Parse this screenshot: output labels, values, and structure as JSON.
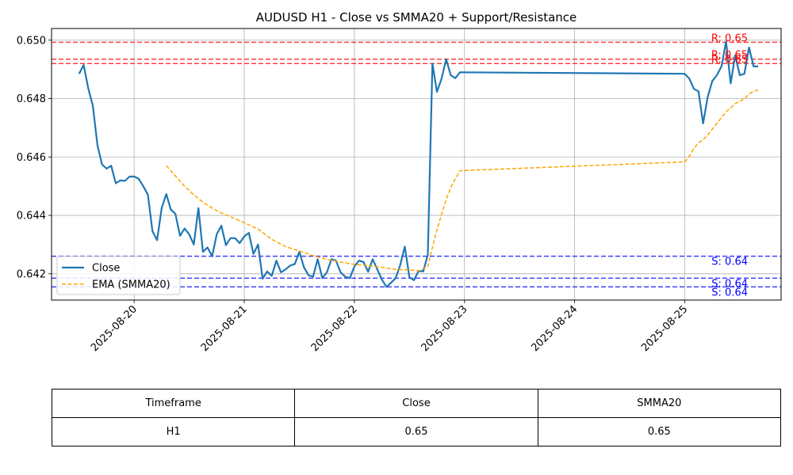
{
  "chart_data": {
    "type": "line",
    "title": "AUDUSD H1 - Close vs SMMA20 + Support/Resistance",
    "xlabel": "",
    "ylabel": "",
    "xlim": [
      "2025-08-19 06:00",
      "2025-08-25 21:00"
    ],
    "ylim": [
      0.6411,
      0.6504
    ],
    "x_ticks": [
      "2025-08-20",
      "2025-08-21",
      "2025-08-22",
      "2025-08-23",
      "2025-08-24",
      "2025-08-25"
    ],
    "y_ticks": [
      "0.642",
      "0.644",
      "0.646",
      "0.648",
      "0.650"
    ],
    "grid": true,
    "legend_position": "lower-left",
    "series": [
      {
        "name": "Close",
        "color": "#1f77b4",
        "style": "solid",
        "points": [
          [
            "2025-08-19 12:00",
            0.64885
          ],
          [
            "2025-08-19 13:00",
            0.64915
          ],
          [
            "2025-08-19 14:00",
            0.64835
          ],
          [
            "2025-08-19 15:00",
            0.64775
          ],
          [
            "2025-08-19 16:00",
            0.6464
          ],
          [
            "2025-08-19 17:00",
            0.64575
          ],
          [
            "2025-08-19 18:00",
            0.6456
          ],
          [
            "2025-08-19 19:00",
            0.6457
          ],
          [
            "2025-08-19 20:00",
            0.6451
          ],
          [
            "2025-08-19 21:00",
            0.6452
          ],
          [
            "2025-08-19 22:00",
            0.64518
          ],
          [
            "2025-08-19 23:00",
            0.64533
          ],
          [
            "2025-08-20 00:00",
            0.64533
          ],
          [
            "2025-08-20 01:00",
            0.64525
          ],
          [
            "2025-08-20 02:00",
            0.645
          ],
          [
            "2025-08-20 03:00",
            0.6447
          ],
          [
            "2025-08-20 04:00",
            0.64345
          ],
          [
            "2025-08-20 05:00",
            0.64315
          ],
          [
            "2025-08-20 06:00",
            0.64425
          ],
          [
            "2025-08-20 07:00",
            0.64473
          ],
          [
            "2025-08-20 08:00",
            0.6442
          ],
          [
            "2025-08-20 09:00",
            0.64405
          ],
          [
            "2025-08-20 10:00",
            0.6433
          ],
          [
            "2025-08-20 11:00",
            0.64355
          ],
          [
            "2025-08-20 12:00",
            0.64335
          ],
          [
            "2025-08-20 13:00",
            0.643
          ],
          [
            "2025-08-20 14:00",
            0.64425
          ],
          [
            "2025-08-20 15:00",
            0.64275
          ],
          [
            "2025-08-20 16:00",
            0.6429
          ],
          [
            "2025-08-20 17:00",
            0.6426
          ],
          [
            "2025-08-20 18:00",
            0.64335
          ],
          [
            "2025-08-20 19:00",
            0.64365
          ],
          [
            "2025-08-20 20:00",
            0.64298
          ],
          [
            "2025-08-20 21:00",
            0.64322
          ],
          [
            "2025-08-20 22:00",
            0.64322
          ],
          [
            "2025-08-20 23:00",
            0.64305
          ],
          [
            "2025-08-21 00:00",
            0.64328
          ],
          [
            "2025-08-21 01:00",
            0.6434
          ],
          [
            "2025-08-21 02:00",
            0.64268
          ],
          [
            "2025-08-21 03:00",
            0.643
          ],
          [
            "2025-08-21 04:00",
            0.64183
          ],
          [
            "2025-08-21 05:00",
            0.64208
          ],
          [
            "2025-08-21 06:00",
            0.64193
          ],
          [
            "2025-08-21 07:00",
            0.64245
          ],
          [
            "2025-08-21 08:00",
            0.64205
          ],
          [
            "2025-08-21 09:00",
            0.64215
          ],
          [
            "2025-08-21 10:00",
            0.64228
          ],
          [
            "2025-08-21 11:00",
            0.64233
          ],
          [
            "2025-08-21 12:00",
            0.64275
          ],
          [
            "2025-08-21 13:00",
            0.64223
          ],
          [
            "2025-08-21 14:00",
            0.64195
          ],
          [
            "2025-08-21 15:00",
            0.6419
          ],
          [
            "2025-08-21 16:00",
            0.6425
          ],
          [
            "2025-08-21 17:00",
            0.64185
          ],
          [
            "2025-08-21 18:00",
            0.64205
          ],
          [
            "2025-08-21 19:00",
            0.6425
          ],
          [
            "2025-08-21 20:00",
            0.64245
          ],
          [
            "2025-08-21 21:00",
            0.64205
          ],
          [
            "2025-08-21 22:00",
            0.6419
          ],
          [
            "2025-08-21 23:00",
            0.64185
          ],
          [
            "2025-08-22 00:00",
            0.64225
          ],
          [
            "2025-08-22 01:00",
            0.64245
          ],
          [
            "2025-08-22 02:00",
            0.6424
          ],
          [
            "2025-08-22 03:00",
            0.64207
          ],
          [
            "2025-08-22 04:00",
            0.6425
          ],
          [
            "2025-08-22 05:00",
            0.64215
          ],
          [
            "2025-08-22 06:00",
            0.6418
          ],
          [
            "2025-08-22 07:00",
            0.64155
          ],
          [
            "2025-08-22 08:00",
            0.6417
          ],
          [
            "2025-08-22 09:00",
            0.64185
          ],
          [
            "2025-08-22 10:00",
            0.6423
          ],
          [
            "2025-08-22 11:00",
            0.64293
          ],
          [
            "2025-08-22 12:00",
            0.64188
          ],
          [
            "2025-08-22 13:00",
            0.64178
          ],
          [
            "2025-08-22 14:00",
            0.6421
          ],
          [
            "2025-08-22 15:00",
            0.64208
          ],
          [
            "2025-08-22 16:00",
            0.64265
          ],
          [
            "2025-08-22 17:00",
            0.6492
          ],
          [
            "2025-08-22 18:00",
            0.64823
          ],
          [
            "2025-08-22 19:00",
            0.64868
          ],
          [
            "2025-08-22 20:00",
            0.64935
          ],
          [
            "2025-08-22 21:00",
            0.6488
          ],
          [
            "2025-08-22 22:00",
            0.6487
          ],
          [
            "2025-08-22 23:00",
            0.6489
          ],
          [
            "2025-08-25 00:00",
            0.64885
          ],
          [
            "2025-08-25 01:00",
            0.64868
          ],
          [
            "2025-08-25 02:00",
            0.64833
          ],
          [
            "2025-08-25 03:00",
            0.64825
          ],
          [
            "2025-08-25 04:00",
            0.64715
          ],
          [
            "2025-08-25 05:00",
            0.64805
          ],
          [
            "2025-08-25 06:00",
            0.6486
          ],
          [
            "2025-08-25 07:00",
            0.6488
          ],
          [
            "2025-08-25 08:00",
            0.6491
          ],
          [
            "2025-08-25 09:00",
            0.64995
          ],
          [
            "2025-08-25 10:00",
            0.64852
          ],
          [
            "2025-08-25 11:00",
            0.64948
          ],
          [
            "2025-08-25 12:00",
            0.6488
          ],
          [
            "2025-08-25 13:00",
            0.64885
          ],
          [
            "2025-08-25 14:00",
            0.64975
          ],
          [
            "2025-08-25 15:00",
            0.6491
          ],
          [
            "2025-08-25 16:00",
            0.6491
          ]
        ]
      },
      {
        "name": "EMA (SMMA20)",
        "color": "#ffa500",
        "style": "dashed",
        "points": [
          [
            "2025-08-20 07:00",
            0.6457
          ],
          [
            "2025-08-20 09:00",
            0.64535
          ],
          [
            "2025-08-20 11:00",
            0.645
          ],
          [
            "2025-08-20 13:00",
            0.6447
          ],
          [
            "2025-08-20 15:00",
            0.64445
          ],
          [
            "2025-08-20 17:00",
            0.64425
          ],
          [
            "2025-08-20 19:00",
            0.64408
          ],
          [
            "2025-08-20 21:00",
            0.64395
          ],
          [
            "2025-08-21 00:00",
            0.64375
          ],
          [
            "2025-08-21 03:00",
            0.64353
          ],
          [
            "2025-08-21 06:00",
            0.64318
          ],
          [
            "2025-08-21 09:00",
            0.64293
          ],
          [
            "2025-08-21 12:00",
            0.64278
          ],
          [
            "2025-08-21 15:00",
            0.64262
          ],
          [
            "2025-08-21 18:00",
            0.6425
          ],
          [
            "2025-08-21 21:00",
            0.6424
          ],
          [
            "2025-08-22 00:00",
            0.64232
          ],
          [
            "2025-08-22 03:00",
            0.64228
          ],
          [
            "2025-08-22 06:00",
            0.64222
          ],
          [
            "2025-08-22 09:00",
            0.64215
          ],
          [
            "2025-08-22 12:00",
            0.64213
          ],
          [
            "2025-08-22 14:00",
            0.6421
          ],
          [
            "2025-08-22 16:00",
            0.64225
          ],
          [
            "2025-08-22 17:00",
            0.6429
          ],
          [
            "2025-08-22 18:00",
            0.6435
          ],
          [
            "2025-08-22 19:00",
            0.64403
          ],
          [
            "2025-08-22 20:00",
            0.64455
          ],
          [
            "2025-08-22 21:00",
            0.64495
          ],
          [
            "2025-08-22 22:00",
            0.64525
          ],
          [
            "2025-08-22 23:00",
            0.64553
          ],
          [
            "2025-08-25 00:00",
            0.64583
          ],
          [
            "2025-08-25 01:00",
            0.64603
          ],
          [
            "2025-08-25 02:00",
            0.6463
          ],
          [
            "2025-08-25 03:00",
            0.64648
          ],
          [
            "2025-08-25 04:00",
            0.6466
          ],
          [
            "2025-08-25 05:00",
            0.64675
          ],
          [
            "2025-08-25 06:00",
            0.64695
          ],
          [
            "2025-08-25 07:00",
            0.64715
          ],
          [
            "2025-08-25 08:00",
            0.64735
          ],
          [
            "2025-08-25 09:00",
            0.64755
          ],
          [
            "2025-08-25 10:00",
            0.64768
          ],
          [
            "2025-08-25 11:00",
            0.64783
          ],
          [
            "2025-08-25 12:00",
            0.6479
          ],
          [
            "2025-08-25 13:00",
            0.648
          ],
          [
            "2025-08-25 14:00",
            0.64815
          ],
          [
            "2025-08-25 15:00",
            0.64825
          ],
          [
            "2025-08-25 16:00",
            0.6483
          ]
        ]
      }
    ],
    "resistance": [
      {
        "value": 0.64993,
        "label": "R: 0.65",
        "color": "#ff0000"
      },
      {
        "value": 0.64935,
        "label": "R: 0.65",
        "color": "#ff0000"
      },
      {
        "value": 0.6492,
        "label": "R: 0.65",
        "color": "#ff0000"
      }
    ],
    "support": [
      {
        "value": 0.6426,
        "label": "S: 0.64",
        "color": "#0000ff"
      },
      {
        "value": 0.64185,
        "label": "S: 0.64",
        "color": "#0000ff"
      },
      {
        "value": 0.64155,
        "label": "S: 0.64",
        "color": "#0000ff"
      }
    ],
    "table": {
      "headers": [
        "Timeframe",
        "Close",
        "SMMA20"
      ],
      "rows": [
        [
          "H1",
          "0.65",
          "0.65"
        ]
      ]
    }
  }
}
